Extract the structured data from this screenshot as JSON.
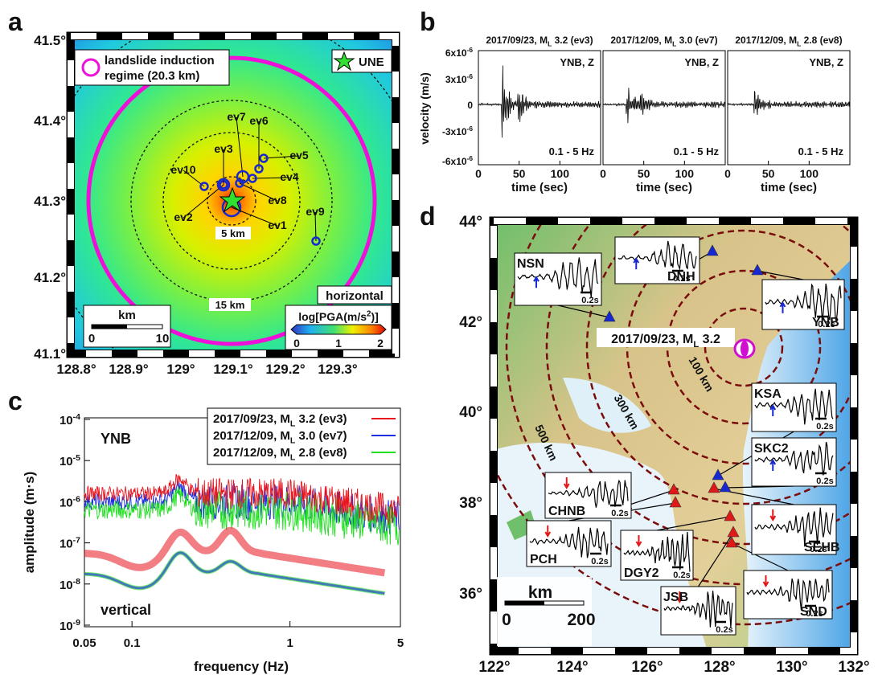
{
  "panel_a": {
    "letter": "a",
    "lat_ticks": [
      "41.5°",
      "41.4°",
      "41.3°",
      "41.2°",
      "41.1°"
    ],
    "lon_ticks": [
      "128.8°",
      "128.9°",
      "129°",
      "129.1°",
      "129.2°",
      "129.3°"
    ],
    "legend_circle": [
      "landslide induction",
      "regime (20.3 km)"
    ],
    "station": "UNE",
    "events": [
      "ev1",
      "ev2",
      "ev3",
      "ev4",
      "ev5",
      "ev6",
      "ev7",
      "ev8",
      "ev9",
      "ev10"
    ],
    "ring_labels": [
      "5 km",
      "15 km"
    ],
    "component": "horizontal",
    "scale_unit": "km",
    "scale_ticks": [
      "0",
      "10"
    ],
    "colorbar_title": {
      "pre": "log[PGA(m/s",
      "sup": "2",
      "post": ")]"
    },
    "colorbar_ticks": [
      "0",
      "1",
      "2"
    ]
  },
  "panel_b": {
    "letter": "b",
    "traces": [
      {
        "date": "2017/09/23, M",
        "sub": "L",
        "rest": " 3.2 (ev3)"
      },
      {
        "date": "2017/12/09, M",
        "sub": "L",
        "rest": " 3.0 (ev7)"
      },
      {
        "date": "2017/12/09, M",
        "sub": "L",
        "rest": " 2.8 (ev8)"
      }
    ],
    "station": "YNB, Z",
    "band": "0.1 - 5 Hz",
    "y_title": "velocity (m/s)",
    "y_ticks": [
      {
        "base": "6x10",
        "exp": "-6"
      },
      {
        "base": "3x10",
        "exp": "-6"
      },
      {
        "base": "0"
      },
      {
        "base": "-3x10",
        "exp": "-6"
      },
      {
        "base": "-6x10",
        "exp": "-6"
      }
    ],
    "x_ticks": [
      "0",
      "50",
      "100"
    ],
    "x_title": "time (sec)"
  },
  "panel_c": {
    "letter": "c",
    "station": "YNB",
    "note": "vertical",
    "legend": [
      {
        "date": "2017/09/23, M",
        "sub": "L",
        "rest": " 3.2 (ev3)",
        "color": "#e8141e"
      },
      {
        "date": "2017/12/09, M",
        "sub": "L",
        "rest": " 3.0 (ev7)",
        "color": "#1f2ee0"
      },
      {
        "date": "2017/12/09, M",
        "sub": "L",
        "rest": " 2.8 (ev8)",
        "color": "#1ee01e"
      }
    ],
    "y_ticks": [
      {
        "base": "10",
        "exp": "-4"
      },
      {
        "base": "10",
        "exp": "-5"
      },
      {
        "base": "10",
        "exp": "-6"
      },
      {
        "base": "10",
        "exp": "-7"
      },
      {
        "base": "10",
        "exp": "-8"
      },
      {
        "base": "10",
        "exp": "-9"
      }
    ],
    "x_ticks": [
      "0.05",
      "0.1",
      "1",
      "5"
    ],
    "x_title": "frequency (Hz)",
    "y_title": "amplitude (m·s)"
  },
  "panel_d": {
    "letter": "d",
    "lat_ticks": [
      "44°",
      "42°",
      "40°",
      "38°",
      "36°"
    ],
    "lon_ticks": [
      "122°",
      "124°",
      "126°",
      "128°",
      "130°",
      "132°"
    ],
    "event": {
      "date": "2017/09/23, M",
      "sub": "L",
      "rest": " 3.2"
    },
    "ring_labels": [
      "100 km",
      "300 km",
      "500 km"
    ],
    "stations": [
      "NSN",
      "DNH",
      "YNB",
      "KSA",
      "SKC2",
      "CHNB",
      "PCH",
      "SEHB",
      "DGY2",
      "JSB",
      "SND"
    ],
    "time_scale": "0.2s",
    "scale_unit": "km",
    "scale_ticks": [
      "0",
      "200"
    ]
  }
}
